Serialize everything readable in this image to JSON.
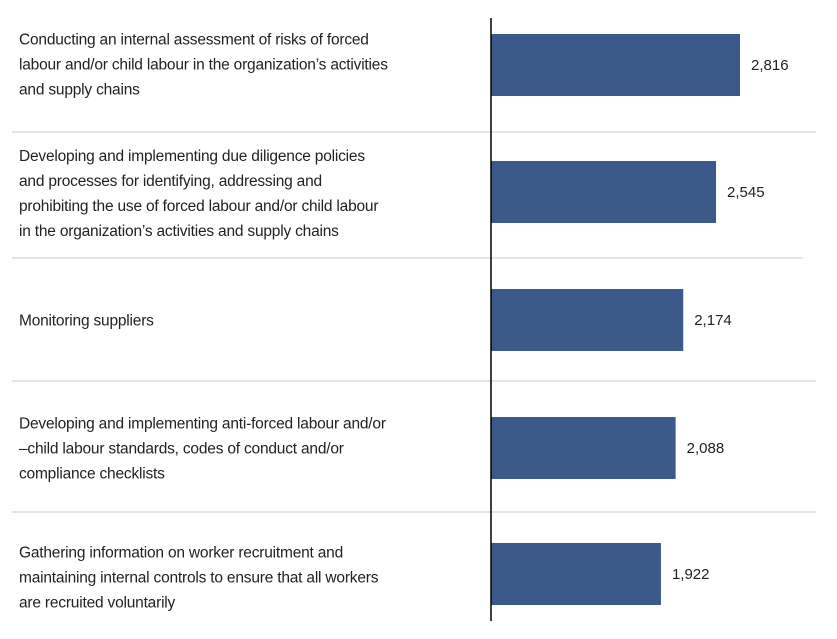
{
  "chart_data": {
    "type": "bar",
    "orientation": "horizontal",
    "categories": [
      [
        "Conducting an internal assessment of risks of forced",
        "labour and/or child labour in the organization’s activities",
        "and supply chains"
      ],
      [
        "Developing and implementing due diligence policies",
        "and processes for identifying, addressing and",
        "prohibiting the use of forced labour and/or child labour",
        "in the organization’s activities and supply chains"
      ],
      [
        "Monitoring suppliers"
      ],
      [
        "Developing and implementing anti-forced labour and/or",
        "–child labour standards, codes of conduct and/or",
        "compliance checklists"
      ],
      [
        "Gathering information on worker recruitment and",
        "maintaining internal controls to ensure that all workers",
        "are recruited voluntarily"
      ]
    ],
    "values": [
      2816,
      2545,
      2174,
      2088,
      1922
    ],
    "value_labels": [
      "2,816",
      "2,545",
      "2,174",
      "2,088",
      "1,922"
    ],
    "xlim": [
      0,
      2816
    ],
    "grid": false,
    "bar_color": "#3b5a89",
    "separator_color": "#c8c8c8",
    "axis_color": "#000000"
  }
}
